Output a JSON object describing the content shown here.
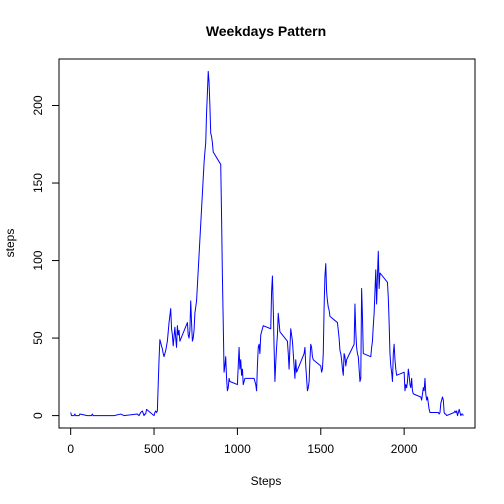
{
  "chart_data": {
    "type": "line",
    "title": "Weekdays Pattern",
    "xlabel": "Steps",
    "ylabel": "steps",
    "xlim": [
      -70,
      2425
    ],
    "ylim": [
      -8,
      230
    ],
    "xticks": [
      0,
      500,
      1000,
      1500,
      2000
    ],
    "yticks": [
      0,
      50,
      100,
      150,
      200
    ],
    "grid": false,
    "series_color": "#0000ff",
    "series": [
      {
        "x": [
          0,
          5,
          10,
          15,
          20,
          25,
          30,
          35,
          40,
          45,
          50,
          55,
          100,
          120,
          125,
          130,
          135,
          200,
          250,
          260,
          300,
          320,
          400,
          410,
          420,
          430,
          440,
          445,
          450,
          455,
          500,
          505,
          510,
          515,
          520,
          525,
          530,
          535,
          540,
          545,
          550,
          555,
          560,
          570,
          580,
          590,
          600,
          605,
          610,
          615,
          620,
          625,
          630,
          635,
          640,
          645,
          650,
          655,
          700,
          705,
          710,
          715,
          720,
          725,
          730,
          735,
          740,
          745,
          750,
          755,
          800,
          805,
          810,
          815,
          820,
          825,
          830,
          835,
          840,
          845,
          850,
          855,
          900,
          905,
          910,
          915,
          920,
          925,
          930,
          935,
          940,
          945,
          950,
          955,
          1000,
          1005,
          1010,
          1015,
          1020,
          1025,
          1030,
          1035,
          1040,
          1045,
          1050,
          1055,
          1100,
          1105,
          1110,
          1115,
          1120,
          1125,
          1130,
          1135,
          1140,
          1145,
          1150,
          1155,
          1200,
          1205,
          1210,
          1215,
          1220,
          1225,
          1230,
          1235,
          1240,
          1245,
          1250,
          1255,
          1300,
          1305,
          1310,
          1315,
          1320,
          1325,
          1330,
          1335,
          1340,
          1345,
          1350,
          1355,
          1400,
          1405,
          1410,
          1415,
          1420,
          1425,
          1430,
          1435,
          1440,
          1445,
          1450,
          1455,
          1500,
          1505,
          1510,
          1515,
          1520,
          1525,
          1530,
          1535,
          1540,
          1545,
          1550,
          1555,
          1600,
          1605,
          1610,
          1615,
          1620,
          1625,
          1630,
          1635,
          1640,
          1645,
          1650,
          1655,
          1700,
          1705,
          1710,
          1715,
          1720,
          1725,
          1730,
          1735,
          1740,
          1745,
          1750,
          1755,
          1800,
          1805,
          1810,
          1815,
          1820,
          1825,
          1830,
          1835,
          1840,
          1845,
          1850,
          1855,
          1900,
          1905,
          1910,
          1915,
          1920,
          1925,
          1930,
          1935,
          1940,
          1945,
          1950,
          1955,
          2000,
          2005,
          2010,
          2015,
          2020,
          2025,
          2030,
          2035,
          2040,
          2045,
          2050,
          2055,
          2100,
          2105,
          2110,
          2115,
          2120,
          2125,
          2130,
          2135,
          2140,
          2145,
          2150,
          2155,
          2200,
          2205,
          2210,
          2215,
          2220,
          2225,
          2230,
          2235,
          2240,
          2245,
          2250,
          2255,
          2300,
          2305,
          2310,
          2315,
          2320,
          2325,
          2330,
          2335,
          2340,
          2345,
          2350,
          2355
        ],
        "y": [
          2,
          0,
          0,
          0,
          0,
          1,
          0,
          0,
          0,
          0,
          0,
          1,
          0,
          0,
          0,
          1,
          0,
          0,
          0,
          0,
          1,
          0,
          1,
          0,
          2,
          3,
          0,
          1,
          1,
          4,
          0,
          2,
          3,
          2,
          3,
          20,
          36,
          49,
          47,
          45,
          43,
          40,
          38,
          42,
          48,
          60,
          69,
          56,
          52,
          45,
          51,
          57,
          50,
          44,
          58,
          52,
          55,
          48,
          60,
          52,
          50,
          55,
          74,
          60,
          48,
          50,
          55,
          66,
          70,
          74,
          163,
          170,
          176,
          195,
          208,
          222,
          215,
          200,
          182,
          180,
          176,
          170,
          162,
          128,
          90,
          60,
          28,
          32,
          38,
          24,
          16,
          18,
          24,
          22,
          20,
          32,
          44,
          30,
          36,
          26,
          30,
          20,
          22,
          24,
          24,
          24,
          24,
          22,
          20,
          16,
          32,
          44,
          46,
          40,
          52,
          54,
          56,
          58,
          56,
          80,
          90,
          70,
          44,
          22,
          34,
          44,
          52,
          66,
          60,
          54,
          48,
          40,
          30,
          44,
          56,
          52,
          48,
          40,
          32,
          24,
          36,
          28,
          40,
          44,
          32,
          24,
          16,
          18,
          22,
          36,
          46,
          44,
          38,
          36,
          32,
          28,
          30,
          40,
          70,
          90,
          98,
          80,
          74,
          70,
          68,
          64,
          60,
          55,
          50,
          42,
          40,
          36,
          30,
          26,
          40,
          38,
          32,
          36,
          46,
          72,
          54,
          44,
          40,
          38,
          30,
          22,
          24,
          82,
          64,
          40,
          38,
          44,
          48,
          58,
          66,
          80,
          94,
          72,
          90,
          106,
          82,
          92,
          86,
          76,
          60,
          40,
          32,
          28,
          22,
          40,
          46,
          36,
          30,
          26,
          28,
          16,
          20,
          18,
          22,
          30,
          26,
          20,
          18,
          24,
          16,
          14,
          12,
          10,
          14,
          18,
          16,
          24,
          14,
          10,
          12,
          8,
          4,
          2,
          2,
          2,
          1,
          2,
          8,
          10,
          12,
          10,
          2,
          1,
          1,
          0,
          2,
          3,
          2,
          3,
          0,
          2,
          4,
          2,
          0,
          1,
          1,
          0
        ]
      }
    ]
  }
}
